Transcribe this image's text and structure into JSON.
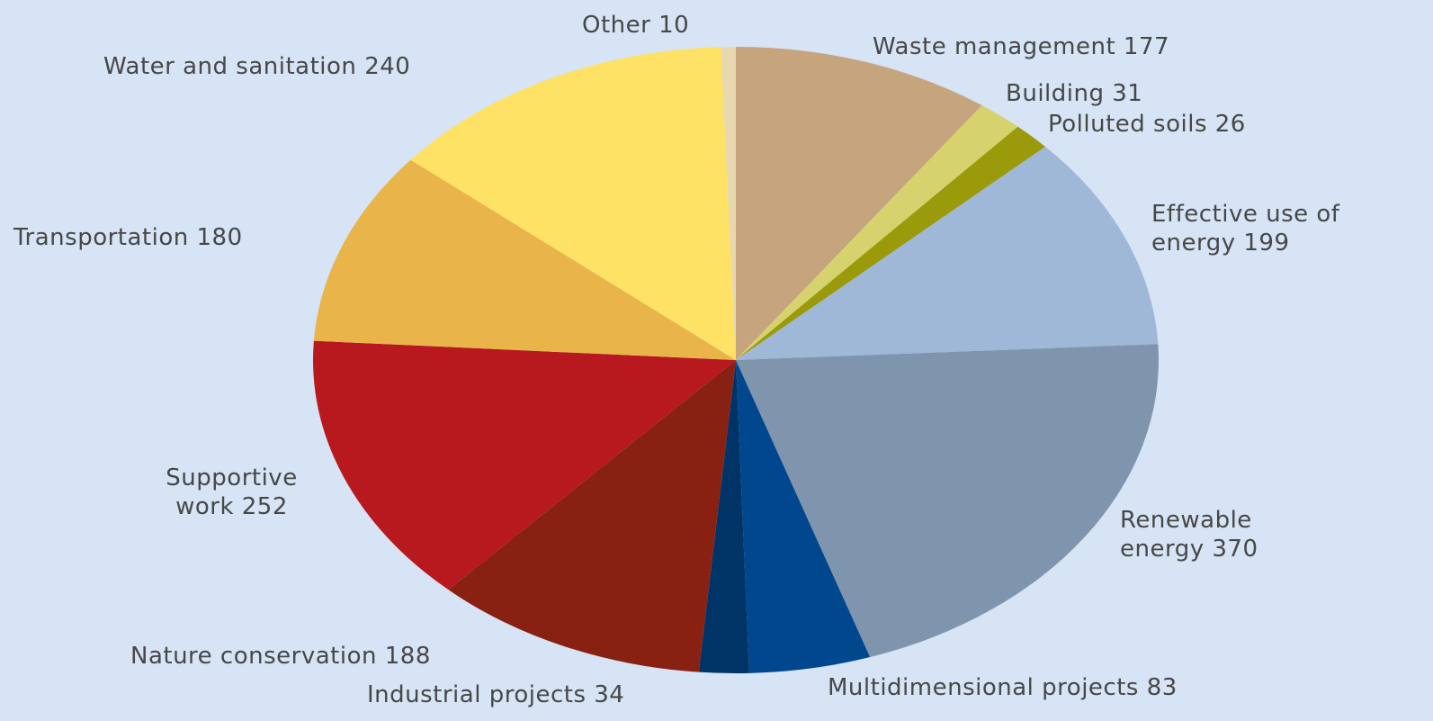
{
  "chart_data": {
    "type": "pie",
    "categories": [
      "Waste management",
      "Building",
      "Polluted soils",
      "Effective use of energy",
      "Renewable energy",
      "Multidimensional projects",
      "Industrial projects",
      "Nature conservation",
      "Supportive work",
      "Transportation",
      "Water and sanitation",
      "Other"
    ],
    "values": [
      177,
      31,
      26,
      199,
      370,
      83,
      34,
      188,
      252,
      180,
      240,
      10
    ],
    "colors": [
      "#c6a47e",
      "#d6d36e",
      "#9a9a0a",
      "#9fb8d8",
      "#7f95ad",
      "#00478e",
      "#003366",
      "#882112",
      "#b8191f",
      "#e9b54a",
      "#fee265",
      "#e8d8b0"
    ]
  }
}
